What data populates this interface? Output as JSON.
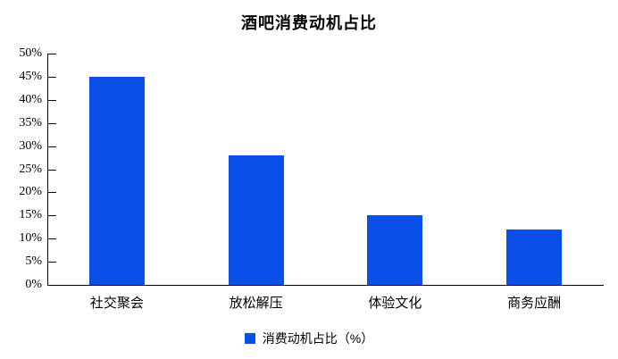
{
  "chart_data": {
    "type": "bar",
    "title": "酒吧消费动机占比",
    "categories": [
      "社交聚会",
      "放松解压",
      "体验文化",
      "商务应酬"
    ],
    "values": [
      45,
      28,
      15,
      12
    ],
    "value_unit": "%",
    "ylim": [
      0,
      50
    ],
    "ytick_step": 5,
    "ytick_labels": [
      "0%",
      "5%",
      "10%",
      "15%",
      "20%",
      "25%",
      "30%",
      "35%",
      "40%",
      "45%",
      "50%"
    ],
    "grid": false,
    "legend_position": "bottom",
    "legend": [
      {
        "label": "消费动机占比（%）",
        "color": "#0a50e8"
      }
    ],
    "colors": {
      "bar": "#0a50e8",
      "axis": "#000000",
      "text": "#000000",
      "background": "#ffffff"
    }
  }
}
